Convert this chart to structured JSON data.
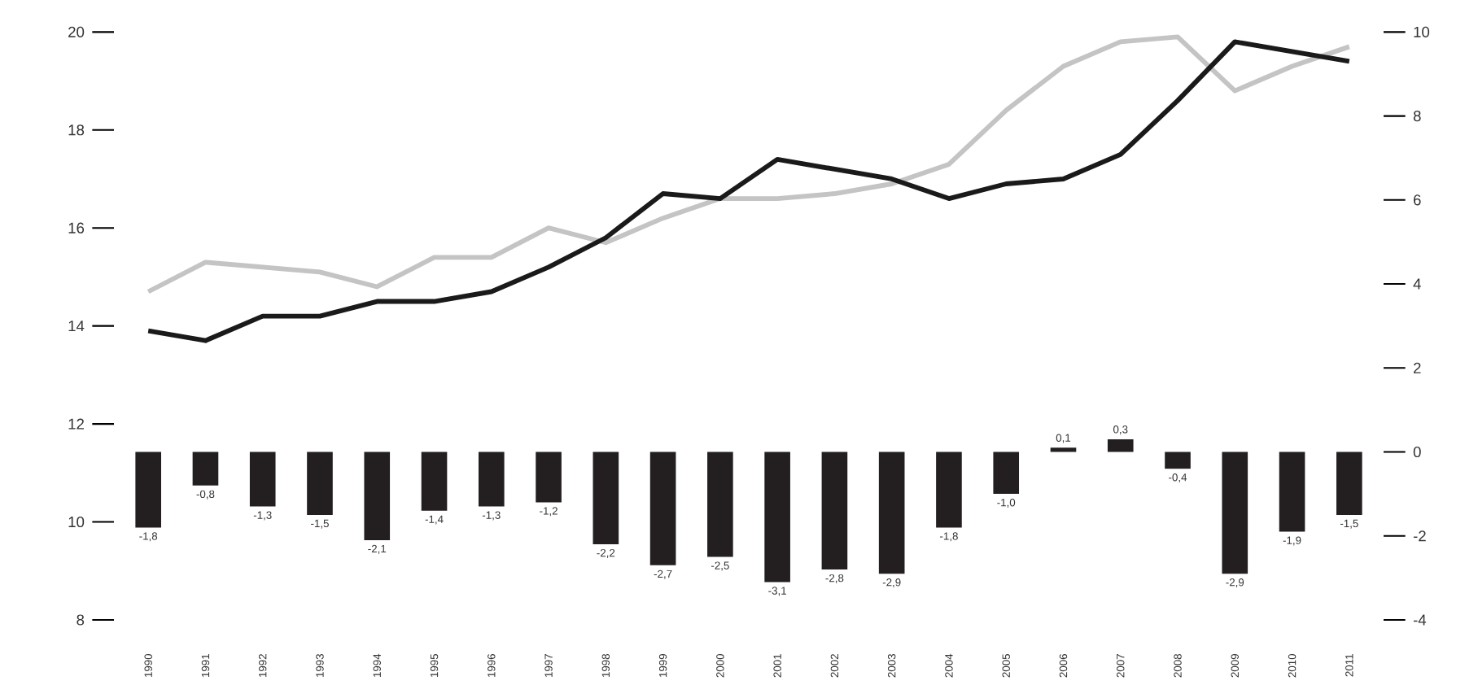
{
  "chart_data": {
    "type": "bar",
    "categories": [
      "1990",
      "1991",
      "1992",
      "1993",
      "1994",
      "1995",
      "1996",
      "1997",
      "1998",
      "1999",
      "2000",
      "2001",
      "2002",
      "2003",
      "2004",
      "2005",
      "2006",
      "2007",
      "2008",
      "2009",
      "2010",
      "2011"
    ],
    "series": [
      {
        "type": "line",
        "color": "#c4c4c4",
        "values": [
          14.7,
          15.3,
          15.2,
          15.1,
          14.8,
          15.4,
          15.4,
          16.0,
          15.7,
          16.2,
          16.6,
          16.6,
          16.7,
          16.9,
          17.3,
          18.4,
          19.3,
          19.8,
          19.9,
          18.8,
          19.3,
          19.7
        ]
      },
      {
        "type": "line",
        "color": "#1a1a1a",
        "values": [
          13.9,
          13.7,
          14.2,
          14.2,
          14.5,
          14.5,
          14.7,
          15.2,
          15.8,
          16.7,
          16.6,
          17.4,
          17.2,
          17.0,
          16.6,
          16.9,
          17.0,
          17.5,
          18.6,
          19.8,
          19.6,
          19.4
        ]
      },
      {
        "axis": "y2",
        "color": "#231f20",
        "values": [
          -1.8,
          -0.8,
          -1.3,
          -1.5,
          -2.1,
          -1.4,
          -1.3,
          -1.2,
          -2.2,
          -2.7,
          -2.5,
          -3.1,
          -2.8,
          -2.9,
          -1.8,
          -1.0,
          0.1,
          0.3,
          -0.4,
          -2.9,
          -1.9,
          -1.5
        ],
        "value_labels": [
          "-1,8",
          "-0,8",
          "-1,3",
          "-1,5",
          "-2,1",
          "-1,4",
          "-1,3",
          "-1,2",
          "-2,2",
          "-2,7",
          "-2,5",
          "-3,1",
          "-2,8",
          "-2,9",
          "-1,8",
          "-1,0",
          "0,1",
          "0,3",
          "-0,4",
          "-2,9",
          "-1,9",
          "-1,5"
        ]
      }
    ],
    "ylim": [
      8,
      20
    ],
    "yticks": [
      8,
      10,
      12,
      14,
      16,
      18,
      20
    ],
    "y2lim": [
      -4,
      10
    ],
    "y2ticks": [
      -4,
      -2,
      0,
      2,
      4,
      6,
      8,
      10
    ],
    "grid": false
  }
}
